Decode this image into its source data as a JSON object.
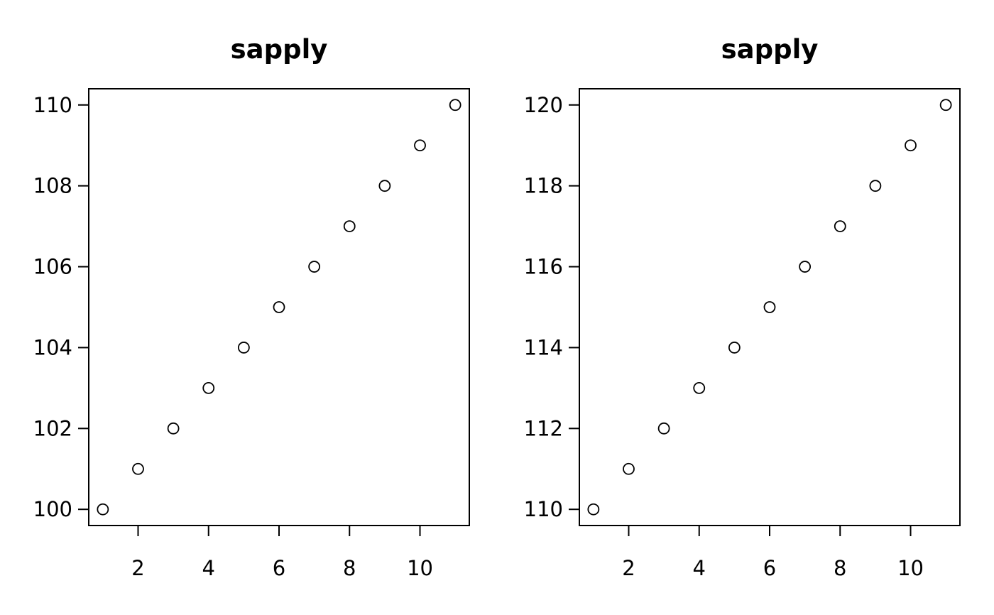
{
  "chart_data": [
    {
      "type": "scatter",
      "title": "sapply",
      "xlabel": "",
      "ylabel": "",
      "xlim": [
        0.6,
        11.4
      ],
      "ylim": [
        99.6,
        110.4
      ],
      "xticks": [
        2,
        4,
        6,
        8,
        10
      ],
      "yticks": [
        100,
        102,
        104,
        106,
        108,
        110
      ],
      "grid": false,
      "x": [
        1,
        2,
        3,
        4,
        5,
        6,
        7,
        8,
        9,
        10,
        11
      ],
      "y": [
        100,
        101,
        102,
        103,
        104,
        105,
        106,
        107,
        108,
        109,
        110
      ]
    },
    {
      "type": "scatter",
      "title": "sapply",
      "xlabel": "",
      "ylabel": "",
      "xlim": [
        0.6,
        11.4
      ],
      "ylim": [
        109.6,
        120.4
      ],
      "xticks": [
        2,
        4,
        6,
        8,
        10
      ],
      "yticks": [
        110,
        112,
        114,
        116,
        118,
        120
      ],
      "grid": false,
      "x": [
        1,
        2,
        3,
        4,
        5,
        6,
        7,
        8,
        9,
        10,
        11
      ],
      "y": [
        110,
        111,
        112,
        113,
        114,
        115,
        116,
        117,
        118,
        119,
        120
      ]
    }
  ]
}
